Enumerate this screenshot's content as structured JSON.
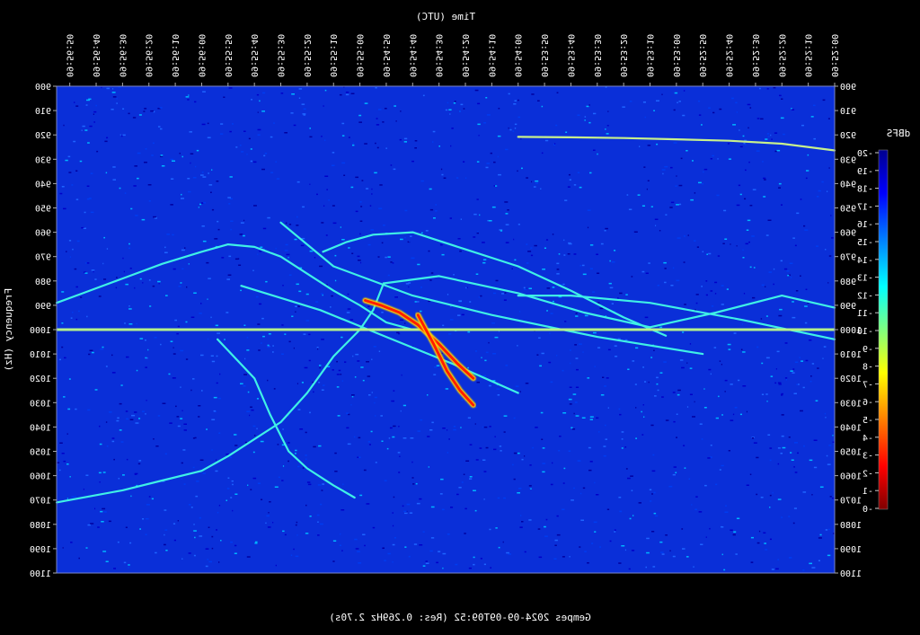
{
  "chart_data": {
    "type": "heatmap",
    "title": "Time (UTC)",
    "xlabel": "Time (UTC)",
    "ylabel": "Frequency (Hz)",
    "footer": "Gempes 2024-09-09T09:52 (Res: 0.269Hz 2.70s)",
    "colorbar_label": "dBFS",
    "colorbar_ticks": [
      "-20",
      "-19",
      "-18",
      "-17",
      "-16",
      "-15",
      "-14",
      "-13",
      "-12",
      "-11",
      "-10",
      "-9",
      "-8",
      "-7",
      "-6",
      "-5",
      "-4",
      "-3",
      "-2",
      "-1",
      "-0"
    ],
    "x_ticks": [
      "09:52:00",
      "09:52:10",
      "09:52:20",
      "09:52:30",
      "09:52:40",
      "09:52:50",
      "09:53:00",
      "09:53:10",
      "09:53:20",
      "09:53:30",
      "09:53:40",
      "09:53:50",
      "09:54:00",
      "09:54:10",
      "09:54:20",
      "09:54:30",
      "09:54:40",
      "09:54:50",
      "09:55:00",
      "09:55:10",
      "09:55:20",
      "09:55:30",
      "09:55:40",
      "09:55:50",
      "09:56:00",
      "09:56:10",
      "09:56:20",
      "09:56:30",
      "09:56:40",
      "09:56:50"
    ],
    "y_ticks": [
      "900",
      "910",
      "920",
      "930",
      "940",
      "950",
      "960",
      "970",
      "980",
      "990",
      "1000",
      "1010",
      "1020",
      "1030",
      "1040",
      "1050",
      "1060",
      "1070",
      "1080",
      "1090",
      "1100"
    ],
    "xlim": [
      "09:52:00",
      "09:56:55"
    ],
    "ylim": [
      900,
      1100
    ],
    "y_reversed": true,
    "mirrored_text": true,
    "colormap": [
      "#00008f",
      "#0000ff",
      "#00ffff",
      "#ffff00",
      "#ff0000",
      "#800000"
    ],
    "background_color": "#000000",
    "traces": [
      {
        "x": [
          0,
          20,
          40,
          60,
          80,
          100,
          120
        ],
        "y": [
          926.4,
          923.6,
          922.4,
          921.8,
          921.3,
          921.0,
          920.8
        ]
      },
      {
        "x": [
          0,
          20,
          45,
          70,
          95,
          120,
          150,
          171
        ],
        "y": [
          991.0,
          986.0,
          993.0,
          999.0,
          993.0,
          985.0,
          978.0,
          981.0
        ]
      },
      {
        "x": [
          171,
          175,
          180,
          190,
          200,
          210,
          220,
          230,
          240,
          255,
          270,
          280,
          290,
          295
        ],
        "y": [
          981.0,
          992.0,
          1000.0,
          1011.0,
          1026.0,
          1038.0,
          1045.0,
          1052.0,
          1058.0,
          1062.0,
          1066.0,
          1068.0,
          1070.0,
          1071.0
        ]
      },
      {
        "x": [
          160,
          170,
          180,
          190,
          200,
          210,
          220,
          230,
          240,
          255,
          270,
          285,
          295
        ],
        "y": [
          1000.0,
          997.0,
          990.0,
          984.0,
          977.0,
          970.0,
          966.0,
          965.0,
          968.0,
          973.0,
          979.0,
          985.0,
          989.0
        ]
      },
      {
        "x": [
          64,
          80,
          100,
          120,
          140,
          160,
          175,
          185,
          194
        ],
        "y": [
          1002.5,
          995.0,
          984.0,
          974.0,
          967.0,
          960.0,
          961.0,
          964.0,
          968.0
        ]
      },
      {
        "x": [
          182,
          190,
          200,
          207,
          214,
          220,
          234
        ],
        "y": [
          1069.0,
          1064.0,
          1057.0,
          1050.0,
          1035.0,
          1020.0,
          1004.0
        ]
      },
      {
        "x": [
          0,
          35,
          70,
          100,
          120
        ],
        "y": [
          1004.0,
          996.0,
          989.0,
          986.0,
          986.0
        ]
      },
      {
        "x": [
          120,
          145,
          170,
          195,
          225
        ],
        "y": [
          1026.0,
          1014.0,
          1003.0,
          992.0,
          982.0
        ]
      },
      {
        "x": [
          50,
          90,
          130,
          160,
          190,
          210
        ],
        "y": [
          1010.0,
          1003.0,
          994.0,
          986.0,
          974.0,
          956.0
        ]
      }
    ],
    "carrier_line_hz": 1000,
    "hot_traces": [
      {
        "x": [
          137,
          143,
          150,
          158,
          165,
          172,
          178
        ],
        "y": [
          1020.0,
          1014.0,
          1006.0,
          998.0,
          993.0,
          990.0,
          988.0
        ]
      },
      {
        "x": [
          137,
          142,
          147,
          152,
          158
        ],
        "y": [
          1031.0,
          1025.0,
          1017.0,
          1006.0,
          994.0
        ]
      }
    ]
  }
}
